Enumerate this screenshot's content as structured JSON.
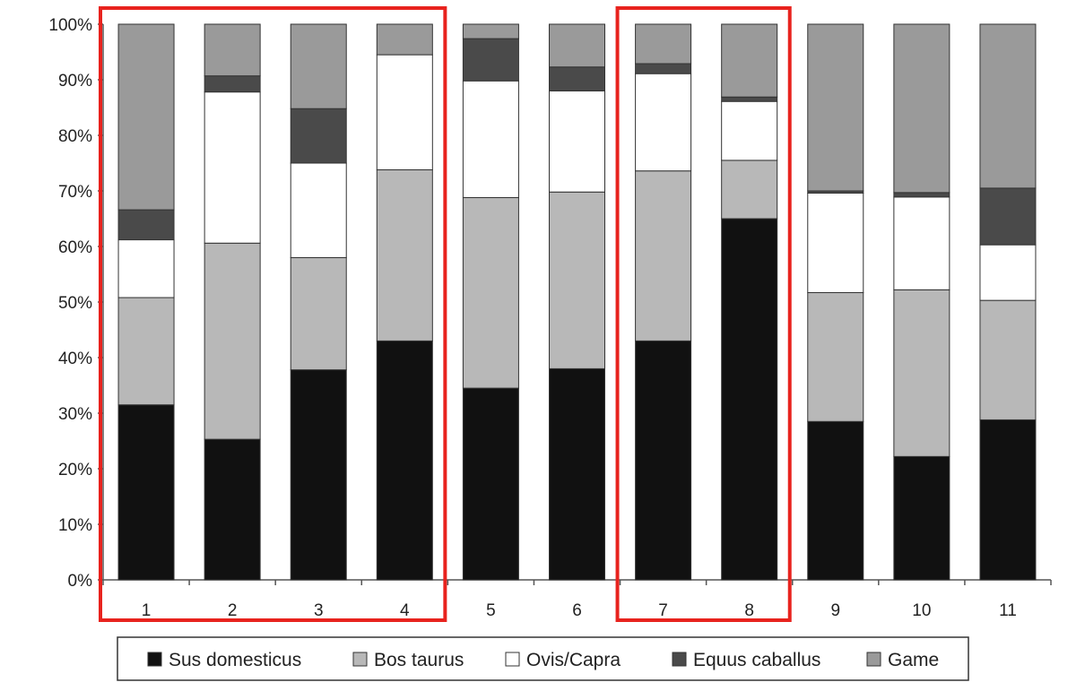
{
  "chart_data": {
    "type": "bar",
    "stacked": true,
    "categories": [
      "1",
      "2",
      "3",
      "4",
      "5",
      "6",
      "7",
      "8",
      "9",
      "10",
      "11"
    ],
    "ylim": [
      0,
      100
    ],
    "yticks": [
      "0%",
      "10%",
      "20%",
      "30%",
      "40%",
      "50%",
      "60%",
      "70%",
      "80%",
      "90%",
      "100%"
    ],
    "title": "",
    "xlabel": "",
    "ylabel": "",
    "grid": false,
    "legend_position": "bottom",
    "series": [
      {
        "name": "Sus domesticus",
        "color": "#111111",
        "values": [
          31.5,
          25.3,
          37.8,
          43.0,
          34.5,
          38.0,
          43.0,
          65.0,
          28.5,
          22.2,
          28.8
        ]
      },
      {
        "name": "Bos taurus",
        "color": "#b8b8b8",
        "values": [
          19.3,
          35.3,
          20.2,
          30.8,
          34.3,
          31.8,
          30.6,
          10.5,
          23.2,
          30.0,
          21.5
        ]
      },
      {
        "name": "Ovis/Capra",
        "color": "#ffffff",
        "values": [
          10.4,
          27.2,
          17.0,
          20.7,
          21.0,
          18.2,
          17.5,
          10.6,
          17.9,
          16.7,
          10.0
        ]
      },
      {
        "name": "Equus caballus",
        "color": "#4a4a4a",
        "values": [
          5.4,
          2.9,
          9.8,
          0,
          7.6,
          4.3,
          1.8,
          0.8,
          0.4,
          0.8,
          10.2
        ]
      },
      {
        "name": "Game",
        "color": "#9a9a9a",
        "values": [
          33.4,
          9.3,
          15.2,
          5.5,
          2.6,
          7.7,
          7.1,
          13.1,
          30.0,
          30.3,
          29.5
        ]
      }
    ],
    "highlight_groups": [
      {
        "categories": [
          "1",
          "2",
          "3",
          "4"
        ],
        "color": "#e8231e"
      },
      {
        "categories": [
          "7",
          "8"
        ],
        "color": "#e8231e"
      }
    ]
  }
}
